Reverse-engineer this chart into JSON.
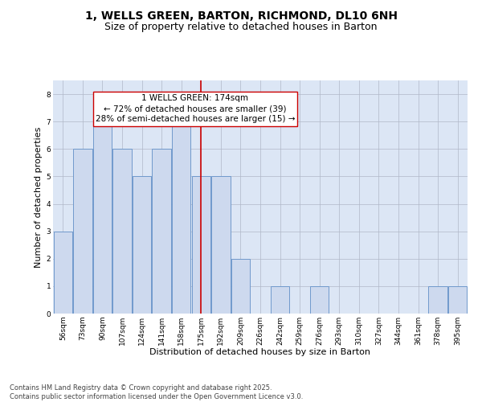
{
  "title": "1, WELLS GREEN, BARTON, RICHMOND, DL10 6NH",
  "subtitle": "Size of property relative to detached houses in Barton",
  "xlabel": "Distribution of detached houses by size in Barton",
  "ylabel": "Number of detached properties",
  "categories": [
    "56sqm",
    "73sqm",
    "90sqm",
    "107sqm",
    "124sqm",
    "141sqm",
    "158sqm",
    "175sqm",
    "192sqm",
    "209sqm",
    "226sqm",
    "242sqm",
    "259sqm",
    "276sqm",
    "293sqm",
    "310sqm",
    "327sqm",
    "344sqm",
    "361sqm",
    "378sqm",
    "395sqm"
  ],
  "values": [
    3,
    6,
    7,
    6,
    5,
    6,
    7,
    5,
    5,
    2,
    0,
    1,
    0,
    1,
    0,
    0,
    0,
    0,
    0,
    1,
    1
  ],
  "bar_color": "#cdd9ee",
  "bar_edge_color": "#7099cc",
  "reference_line_x": 7,
  "reference_line_color": "#cc0000",
  "annotation_text": "1 WELLS GREEN: 174sqm\n← 72% of detached houses are smaller (39)\n28% of semi-detached houses are larger (15) →",
  "annotation_box_color": "#ffffff",
  "annotation_box_edge_color": "#cc0000",
  "ylim": [
    0,
    8.5
  ],
  "yticks": [
    0,
    1,
    2,
    3,
    4,
    5,
    6,
    7,
    8
  ],
  "background_color": "#dce6f5",
  "footer_text": "Contains HM Land Registry data © Crown copyright and database right 2025.\nContains public sector information licensed under the Open Government Licence v3.0.",
  "title_fontsize": 10,
  "subtitle_fontsize": 9,
  "xlabel_fontsize": 8,
  "ylabel_fontsize": 8,
  "tick_fontsize": 6.5,
  "annotation_fontsize": 7.5,
  "footer_fontsize": 6
}
